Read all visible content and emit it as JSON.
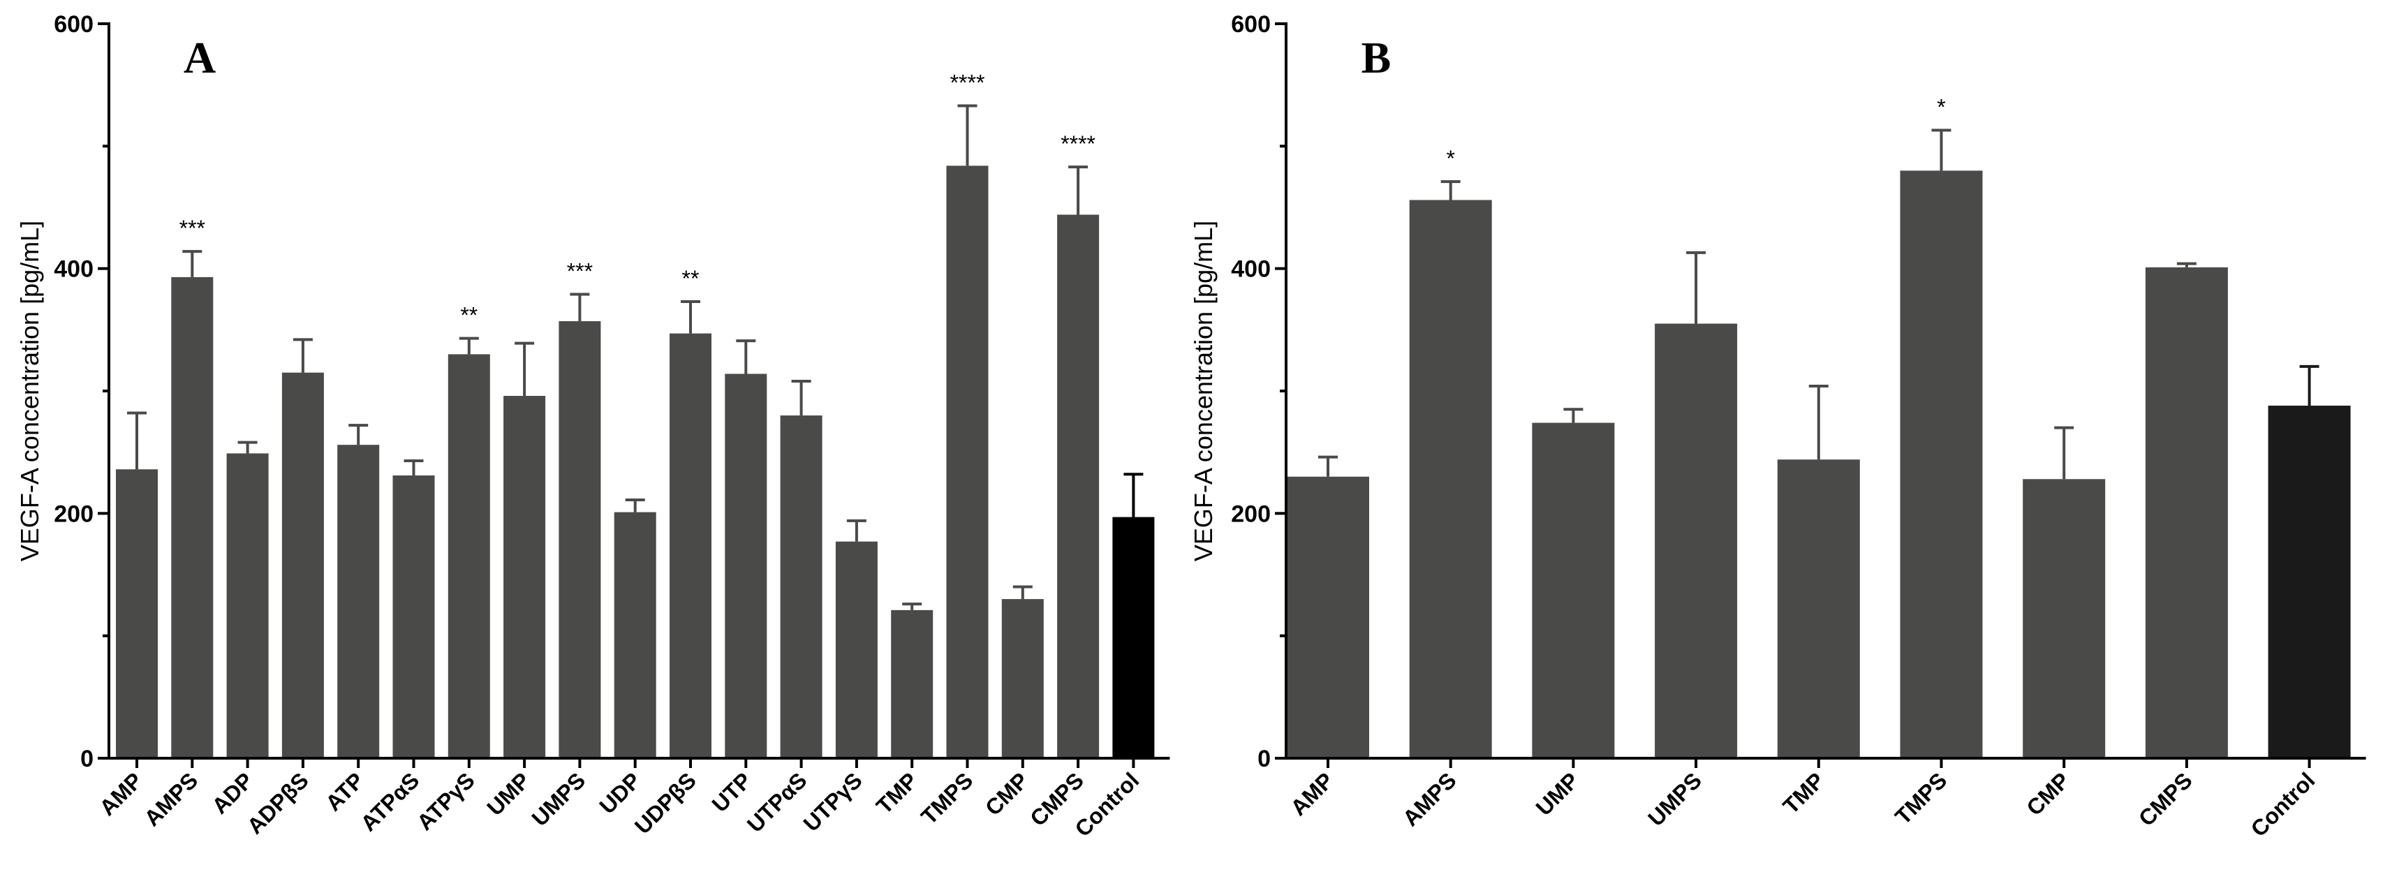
{
  "colors": {
    "bar": "#4a4a49",
    "control_bar_a": "#000000",
    "control_bar_b": "#1a1a1a",
    "axis": "#000000",
    "text": "#000000"
  },
  "chart_data": [
    {
      "type": "bar",
      "panel_label": "A",
      "ylabel": "VEGF-A concentration [pg/mL]",
      "xlabel": "",
      "ylim": [
        0,
        600
      ],
      "yticks": [
        0,
        200,
        400,
        600
      ],
      "grid": false,
      "categories": [
        "AMP",
        "AMPS",
        "ADP",
        "ADPβS",
        "ATP",
        "ATPαS",
        "ATPγS",
        "UMP",
        "UMPS",
        "UDP",
        "UDPβS",
        "UTP",
        "UTPαS",
        "UTPγS",
        "TMP",
        "TMPS",
        "CMP",
        "CMPS",
        "Control"
      ],
      "values": [
        236,
        393,
        249,
        315,
        256,
        231,
        330,
        296,
        357,
        201,
        347,
        314,
        280,
        177,
        121,
        484,
        130,
        444,
        197
      ],
      "errors": [
        46,
        21,
        9,
        27,
        16,
        12,
        13,
        43,
        22,
        10,
        26,
        27,
        28,
        17,
        5,
        49,
        10,
        39,
        35
      ],
      "significance": [
        "",
        "***",
        "",
        "",
        "",
        "",
        "**",
        "",
        "***",
        "",
        "**",
        "",
        "",
        "",
        "",
        "****",
        "",
        "****",
        ""
      ]
    },
    {
      "type": "bar",
      "panel_label": "B",
      "ylabel": "VEGF-A concentration [pg/mL]",
      "xlabel": "",
      "ylim": [
        0,
        600
      ],
      "yticks": [
        0,
        200,
        400,
        600
      ],
      "grid": false,
      "categories": [
        "AMP",
        "AMPS",
        "UMP",
        "UMPS",
        "TMP",
        "TMPS",
        "CMP",
        "CMPS",
        "Control"
      ],
      "values": [
        230,
        456,
        274,
        355,
        244,
        480,
        228,
        401,
        288
      ],
      "errors": [
        16,
        15,
        11,
        58,
        60,
        33,
        42,
        3,
        32
      ],
      "significance": [
        "",
        "*",
        "",
        "",
        "",
        "*",
        "",
        "",
        ""
      ]
    }
  ]
}
